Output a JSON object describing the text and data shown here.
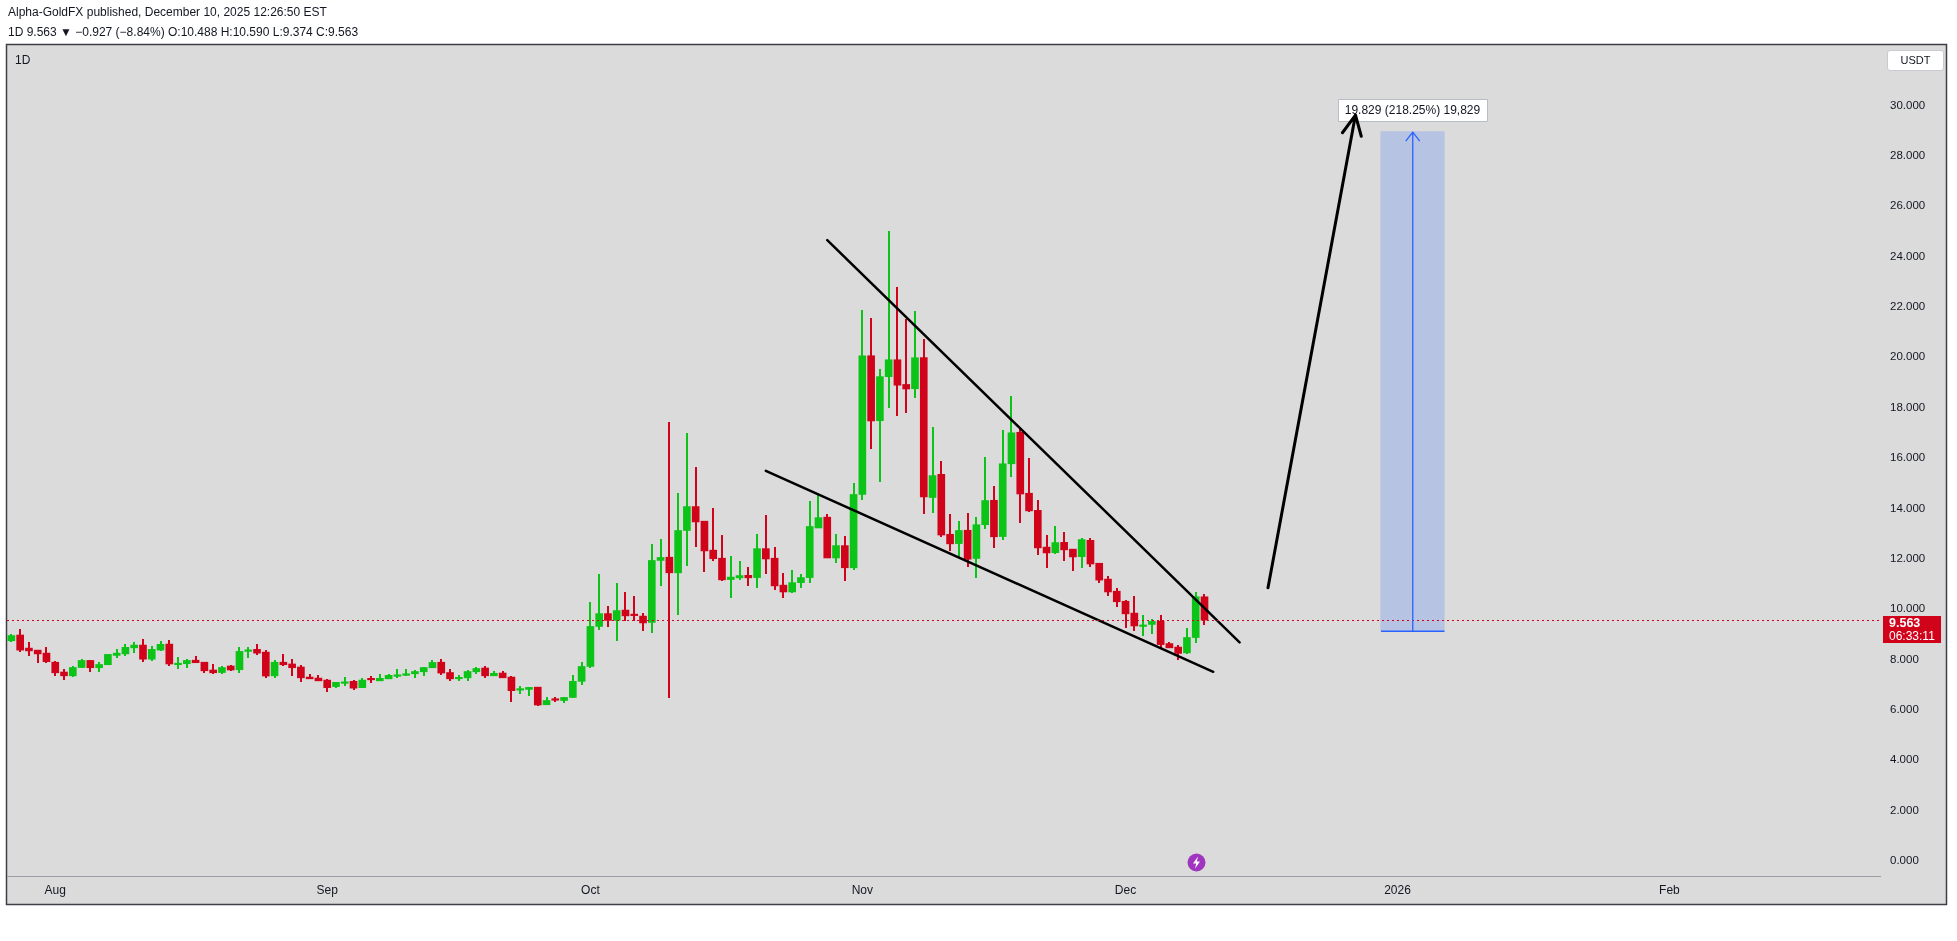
{
  "chart_data": {
    "type": "candlestick",
    "title": "1D",
    "subtitle": "1D 9.563 ▼ −0.927 (−8.84%) O:10.488 H:10.590 L:9.374 C:9.563",
    "ylabel": "USDT",
    "annotations": [
      "Alpha-GoldFX published, December 10, 2025 12:26:50 EST",
      "06:33:11",
      {
        "text": "19.829 (218.25%) 19,829",
        "x": "2026-01-02T17:00",
        "y": 28.96
      }
    ],
    "x": [
      "2025-07-27",
      "2025-07-28",
      "2025-07-29",
      "2025-07-30",
      "2025-07-31",
      "2025-08-01",
      "2025-08-02",
      "2025-08-03",
      "2025-08-04",
      "2025-08-05",
      "2025-08-06",
      "2025-08-07",
      "2025-08-08",
      "2025-08-09",
      "2025-08-10",
      "2025-08-11",
      "2025-08-12",
      "2025-08-13",
      "2025-08-14",
      "2025-08-15",
      "2025-08-16",
      "2025-08-17",
      "2025-08-18",
      "2025-08-19",
      "2025-08-20",
      "2025-08-21",
      "2025-08-22",
      "2025-08-23",
      "2025-08-24",
      "2025-08-25",
      "2025-08-26",
      "2025-08-27",
      "2025-08-28",
      "2025-08-29",
      "2025-08-30",
      "2025-08-31",
      "2025-09-01",
      "2025-09-02",
      "2025-09-03",
      "2025-09-04",
      "2025-09-05",
      "2025-09-06",
      "2025-09-07",
      "2025-09-08",
      "2025-09-09",
      "2025-09-10",
      "2025-09-11",
      "2025-09-12",
      "2025-09-13",
      "2025-09-14",
      "2025-09-15",
      "2025-09-16",
      "2025-09-17",
      "2025-09-18",
      "2025-09-19",
      "2025-09-20",
      "2025-09-21",
      "2025-09-22",
      "2025-09-23",
      "2025-09-24",
      "2025-09-25",
      "2025-09-26",
      "2025-09-27",
      "2025-09-28",
      "2025-09-29",
      "2025-09-30",
      "2025-10-01",
      "2025-10-02",
      "2025-10-03",
      "2025-10-04",
      "2025-10-05",
      "2025-10-06",
      "2025-10-07",
      "2025-10-08",
      "2025-10-09",
      "2025-10-10",
      "2025-10-11",
      "2025-10-12",
      "2025-10-13",
      "2025-10-14",
      "2025-10-15",
      "2025-10-16",
      "2025-10-17",
      "2025-10-18",
      "2025-10-19",
      "2025-10-20",
      "2025-10-21",
      "2025-10-22",
      "2025-10-23",
      "2025-10-24",
      "2025-10-25",
      "2025-10-26",
      "2025-10-27",
      "2025-10-28",
      "2025-10-29",
      "2025-10-30",
      "2025-10-31",
      "2025-11-01",
      "2025-11-02",
      "2025-11-03",
      "2025-11-04",
      "2025-11-05",
      "2025-11-06",
      "2025-11-07",
      "2025-11-08",
      "2025-11-09",
      "2025-11-10",
      "2025-11-11",
      "2025-11-12",
      "2025-11-13",
      "2025-11-14",
      "2025-11-15",
      "2025-11-16",
      "2025-11-17",
      "2025-11-18",
      "2025-11-19",
      "2025-11-20",
      "2025-11-21",
      "2025-11-22",
      "2025-11-23",
      "2025-11-24",
      "2025-11-25",
      "2025-11-26",
      "2025-11-27",
      "2025-11-28",
      "2025-11-29",
      "2025-11-30",
      "2025-12-01",
      "2025-12-02",
      "2025-12-03",
      "2025-12-04",
      "2025-12-05",
      "2025-12-06",
      "2025-12-07",
      "2025-12-08",
      "2025-12-09",
      "2025-12-10"
    ],
    "ohlc": [
      [
        8.74,
        9.0,
        8.72,
        8.95
      ],
      [
        8.97,
        9.2,
        8.33,
        8.37
      ],
      [
        8.45,
        8.69,
        8.17,
        8.34
      ],
      [
        8.37,
        8.37,
        7.87,
        8.22
      ],
      [
        8.25,
        8.49,
        7.87,
        7.91
      ],
      [
        7.89,
        7.93,
        7.38,
        7.47
      ],
      [
        7.5,
        7.6,
        7.19,
        7.35
      ],
      [
        7.35,
        7.72,
        7.31,
        7.68
      ],
      [
        7.68,
        8.01,
        7.68,
        7.96
      ],
      [
        7.96,
        7.96,
        7.51,
        7.67
      ],
      [
        7.67,
        7.89,
        7.51,
        7.8
      ],
      [
        7.79,
        8.2,
        7.79,
        8.2
      ],
      [
        8.16,
        8.4,
        8.07,
        8.25
      ],
      [
        8.22,
        8.61,
        8.15,
        8.48
      ],
      [
        8.46,
        8.69,
        8.26,
        8.57
      ],
      [
        8.57,
        8.81,
        7.93,
        8.01
      ],
      [
        8.01,
        8.53,
        7.95,
        8.4
      ],
      [
        8.37,
        8.7,
        8.34,
        8.6
      ],
      [
        8.61,
        8.77,
        7.75,
        7.82
      ],
      [
        7.85,
        8.09,
        7.63,
        7.85
      ],
      [
        7.83,
        8.01,
        7.67,
        7.96
      ],
      [
        7.97,
        8.13,
        7.87,
        7.87
      ],
      [
        7.89,
        7.89,
        7.47,
        7.55
      ],
      [
        7.58,
        7.81,
        7.43,
        7.47
      ],
      [
        7.48,
        7.72,
        7.44,
        7.68
      ],
      [
        7.74,
        7.77,
        7.58,
        7.58
      ],
      [
        7.59,
        8.49,
        7.47,
        8.32
      ],
      [
        8.38,
        8.49,
        8.07,
        8.38
      ],
      [
        8.4,
        8.61,
        8.19,
        8.25
      ],
      [
        8.29,
        8.37,
        7.27,
        7.34
      ],
      [
        7.35,
        7.96,
        7.27,
        7.89
      ],
      [
        7.89,
        8.21,
        7.74,
        7.79
      ],
      [
        7.82,
        8.01,
        7.38,
        7.67
      ],
      [
        7.7,
        7.74,
        7.14,
        7.27
      ],
      [
        7.3,
        7.42,
        7.23,
        7.23
      ],
      [
        7.26,
        7.38,
        7.15,
        7.15
      ],
      [
        7.18,
        7.22,
        6.74,
        6.88
      ],
      [
        6.92,
        7.09,
        6.88,
        7.09
      ],
      [
        7.11,
        7.29,
        6.96,
        7.11
      ],
      [
        7.13,
        7.18,
        6.82,
        6.86
      ],
      [
        6.88,
        7.25,
        6.88,
        7.18
      ],
      [
        7.2,
        7.31,
        7.07,
        7.19
      ],
      [
        7.15,
        7.41,
        7.15,
        7.25
      ],
      [
        7.23,
        7.41,
        7.23,
        7.37
      ],
      [
        7.39,
        7.62,
        7.3,
        7.39
      ],
      [
        7.43,
        7.62,
        7.38,
        7.43
      ],
      [
        7.43,
        7.58,
        7.3,
        7.52
      ],
      [
        7.51,
        7.68,
        7.35,
        7.68
      ],
      [
        7.67,
        7.97,
        7.67,
        7.88
      ],
      [
        7.89,
        8.0,
        7.42,
        7.46
      ],
      [
        7.48,
        7.6,
        7.15,
        7.23
      ],
      [
        7.29,
        7.38,
        7.15,
        7.29
      ],
      [
        7.27,
        7.58,
        7.15,
        7.52
      ],
      [
        7.51,
        7.68,
        7.46,
        7.64
      ],
      [
        7.66,
        7.72,
        7.3,
        7.35
      ],
      [
        7.35,
        7.52,
        7.35,
        7.45
      ],
      [
        7.46,
        7.52,
        7.27,
        7.27
      ],
      [
        7.3,
        7.33,
        6.32,
        6.76
      ],
      [
        6.84,
        6.94,
        6.64,
        6.84
      ],
      [
        6.81,
        6.89,
        6.56,
        6.89
      ],
      [
        6.9,
        6.9,
        6.19,
        6.19
      ],
      [
        6.2,
        6.49,
        6.2,
        6.37
      ],
      [
        6.39,
        6.47,
        6.32,
        6.38
      ],
      [
        6.37,
        6.49,
        6.28,
        6.49
      ],
      [
        6.49,
        7.38,
        6.49,
        7.13
      ],
      [
        7.13,
        7.88,
        7.02,
        7.72
      ],
      [
        7.72,
        10.27,
        7.67,
        9.31
      ],
      [
        9.31,
        11.39,
        9.18,
        9.82
      ],
      [
        9.82,
        10.12,
        9.3,
        9.55
      ],
      [
        9.55,
        11.03,
        8.74,
        9.94
      ],
      [
        9.96,
        10.67,
        9.53,
        9.73
      ],
      [
        9.75,
        10.51,
        9.53,
        9.74
      ],
      [
        9.72,
        9.82,
        9.14,
        9.45
      ],
      [
        9.47,
        12.57,
        9.06,
        11.93
      ],
      [
        11.93,
        12.77,
        10.95,
        12.05
      ],
      [
        12.06,
        17.41,
        6.48,
        11.44
      ],
      [
        11.44,
        14.6,
        9.77,
        13.12
      ],
      [
        13.12,
        16.98,
        11.74,
        14.07
      ],
      [
        14.07,
        15.63,
        12.47,
        13.46
      ],
      [
        13.49,
        13.49,
        11.48,
        12.31
      ],
      [
        12.34,
        14.0,
        11.91,
        12.0
      ],
      [
        12.02,
        12.93,
        11.12,
        11.16
      ],
      [
        11.17,
        12.1,
        10.45,
        11.27
      ],
      [
        11.24,
        11.9,
        11.17,
        11.33
      ],
      [
        11.34,
        11.66,
        10.92,
        11.24
      ],
      [
        11.25,
        12.97,
        10.84,
        12.4
      ],
      [
        12.4,
        13.72,
        11.4,
        11.99
      ],
      [
        12.02,
        12.46,
        10.76,
        10.92
      ],
      [
        10.95,
        11.4,
        10.45,
        10.68
      ],
      [
        10.68,
        11.52,
        10.64,
        11.05
      ],
      [
        11.05,
        11.38,
        10.84,
        11.25
      ],
      [
        11.25,
        14.29,
        11.04,
        13.28
      ],
      [
        13.22,
        14.52,
        13.22,
        13.63
      ],
      [
        13.65,
        13.76,
        12.03,
        12.03
      ],
      [
        12.03,
        12.97,
        11.83,
        12.52
      ],
      [
        12.52,
        12.89,
        11.12,
        11.64
      ],
      [
        11.64,
        14.99,
        11.56,
        14.55
      ],
      [
        14.55,
        21.86,
        14.35,
        20.06
      ],
      [
        20.06,
        21.54,
        16.36,
        17.47
      ],
      [
        17.48,
        19.5,
        15.05,
        19.23
      ],
      [
        19.23,
        24.99,
        18.02,
        19.9
      ],
      [
        19.9,
        22.77,
        17.7,
        18.89
      ],
      [
        18.92,
        21.5,
        17.82,
        18.74
      ],
      [
        18.75,
        21.82,
        18.39,
        19.98
      ],
      [
        19.99,
        20.71,
        13.79,
        14.45
      ],
      [
        14.43,
        17.22,
        13.82,
        15.3
      ],
      [
        15.35,
        15.88,
        12.89,
        12.94
      ],
      [
        12.97,
        13.74,
        12.34,
        12.59
      ],
      [
        12.6,
        13.49,
        12.03,
        13.12
      ],
      [
        13.13,
        13.78,
        11.71,
        11.98
      ],
      [
        12.01,
        13.62,
        11.24,
        13.35
      ],
      [
        13.35,
        16.0,
        13.2,
        14.31
      ],
      [
        14.32,
        14.88,
        12.43,
        12.87
      ],
      [
        12.88,
        17.1,
        12.76,
        15.77
      ],
      [
        15.77,
        18.44,
        15.26,
        17.0
      ],
      [
        17.02,
        17.16,
        13.43,
        14.57
      ],
      [
        14.6,
        15.99,
        13.86,
        13.9
      ],
      [
        13.92,
        14.33,
        12.16,
        12.43
      ],
      [
        12.46,
        12.93,
        11.64,
        12.23
      ],
      [
        12.24,
        13.29,
        12.2,
        12.64
      ],
      [
        12.65,
        13.05,
        11.94,
        12.35
      ],
      [
        12.38,
        12.38,
        11.52,
        12.07
      ],
      [
        12.08,
        12.81,
        11.64,
        12.76
      ],
      [
        12.73,
        12.79,
        11.71,
        11.79
      ],
      [
        11.82,
        11.82,
        11.04,
        11.15
      ],
      [
        11.19,
        11.3,
        10.55,
        10.68
      ],
      [
        10.71,
        10.82,
        10.09,
        10.29
      ],
      [
        10.31,
        10.35,
        9.27,
        9.81
      ],
      [
        9.84,
        10.51,
        9.16,
        9.33
      ],
      [
        9.37,
        9.76,
        8.96,
        9.37
      ],
      [
        9.39,
        9.6,
        9.04,
        9.51
      ],
      [
        9.52,
        9.76,
        8.42,
        8.59
      ],
      [
        8.63,
        8.69,
        8.46,
        8.46
      ],
      [
        8.49,
        8.57,
        8.01,
        8.24
      ],
      [
        8.26,
        9.24,
        8.24,
        8.87
      ],
      [
        8.87,
        10.67,
        8.69,
        10.49
      ],
      [
        10.488,
        10.59,
        9.374,
        9.563
      ]
    ],
    "colors": [
      "#0cc418",
      "#d0031b",
      "#d0031b",
      "#d0031b",
      "#d0031b",
      "#d0031b",
      "#d0031b",
      "#0cc418",
      "#0cc418",
      "#d0031b",
      "#0cc418",
      "#0cc418",
      "#0cc418",
      "#0cc418",
      "#0cc418",
      "#d0031b",
      "#0cc418",
      "#0cc418",
      "#d0031b",
      "#0cc418",
      "#0cc418",
      "#d0031b",
      "#d0031b",
      "#d0031b",
      "#0cc418",
      "#d0031b",
      "#0cc418",
      "#0cc418",
      "#d0031b",
      "#d0031b",
      "#0cc418",
      "#d0031b",
      "#d0031b",
      "#d0031b",
      "#d0031b",
      "#d0031b",
      "#d0031b",
      "#0cc418",
      "#0cc418",
      "#d0031b",
      "#0cc418",
      "#d0031b",
      "#0cc418",
      "#0cc418",
      "#0cc418",
      "#0cc418",
      "#0cc418",
      "#0cc418",
      "#0cc418",
      "#d0031b",
      "#d0031b",
      "#0cc418",
      "#0cc418",
      "#0cc418",
      "#d0031b",
      "#0cc418",
      "#d0031b",
      "#d0031b",
      "#0cc418",
      "#0cc418",
      "#d0031b",
      "#0cc418",
      "#d0031b",
      "#0cc418",
      "#0cc418",
      "#0cc418",
      "#0cc418",
      "#0cc418",
      "#d0031b",
      "#0cc418",
      "#d0031b",
      "#d0031b",
      "#d0031b",
      "#0cc418",
      "#0cc418",
      "#d0031b",
      "#0cc418",
      "#0cc418",
      "#d0031b",
      "#d0031b",
      "#d0031b",
      "#d0031b",
      "#0cc418",
      "#0cc418",
      "#d0031b",
      "#0cc418",
      "#d0031b",
      "#d0031b",
      "#d0031b",
      "#0cc418",
      "#0cc418",
      "#0cc418",
      "#0cc418",
      "#d0031b",
      "#0cc418",
      "#d0031b",
      "#0cc418",
      "#0cc418",
      "#d0031b",
      "#0cc418",
      "#0cc418",
      "#d0031b",
      "#d0031b",
      "#0cc418",
      "#d0031b",
      "#0cc418",
      "#d0031b",
      "#d0031b",
      "#0cc418",
      "#d0031b",
      "#0cc418",
      "#0cc418",
      "#d0031b",
      "#0cc418",
      "#0cc418",
      "#d0031b",
      "#d0031b",
      "#d0031b",
      "#d0031b",
      "#0cc418",
      "#d0031b",
      "#d0031b",
      "#0cc418",
      "#d0031b",
      "#d0031b",
      "#d0031b",
      "#d0031b",
      "#d0031b",
      "#d0031b",
      "#0cc418",
      "#0cc418",
      "#d0031b",
      "#d0031b",
      "#d0031b",
      "#0cc418",
      "#0cc418",
      "#d0031b"
    ],
    "series": [
      {
        "type": "line",
        "x": [
          "2025-10-28",
          "2025-12-14"
        ],
        "values": [
          24.65,
          8.68
        ],
        "color": "#000000"
      },
      {
        "type": "line",
        "x": [
          "2025-10-21",
          "2025-12-11"
        ],
        "values": [
          15.49,
          7.51
        ],
        "color": "#000000"
      },
      {
        "type": "bar",
        "x": [
          "2026-01-02T17:00"
        ],
        "base": [
          9.131
        ],
        "values": [
          19.829
        ],
        "color": "#b7c3e3"
      }
    ],
    "xlim": [
      "2025-07-26T12:00",
      "2026-02-25"
    ],
    "xticks": [
      {
        "value": "2025-08-01",
        "label": "Aug"
      },
      {
        "value": "2025-09-01",
        "label": "Sep"
      },
      {
        "value": "2025-10-01",
        "label": "Oct"
      },
      {
        "value": "2025-11-01",
        "label": "Nov"
      },
      {
        "value": "2025-12-01",
        "label": "Dec"
      },
      {
        "value": "2026-01-01",
        "label": "2026"
      },
      {
        "value": "2026-02-01",
        "label": "Feb"
      }
    ],
    "ylim": [
      -0.6,
      32.4
    ],
    "yticks": [
      {
        "value": 0,
        "label": "0.000"
      },
      {
        "value": 2,
        "label": "2.000"
      },
      {
        "value": 4,
        "label": "4.000"
      },
      {
        "value": 6,
        "label": "6.000"
      },
      {
        "value": 8,
        "label": "8.000"
      },
      {
        "value": 10,
        "label": "10.000"
      },
      {
        "value": 12,
        "label": "12.000"
      },
      {
        "value": 14,
        "label": "14.000"
      },
      {
        "value": 16,
        "label": "16.000"
      },
      {
        "value": 18,
        "label": "18.000"
      },
      {
        "value": 20,
        "label": "20.000"
      },
      {
        "value": 22,
        "label": "22.000"
      },
      {
        "value": 24,
        "label": "24.000"
      },
      {
        "value": 26,
        "label": "26.000"
      },
      {
        "value": 28,
        "label": "28.000"
      },
      {
        "value": 30,
        "label": "30.000"
      }
    ],
    "ref_lines": [
      {
        "axis": "y",
        "value": 9.563,
        "label": "9.563",
        "color": "#d0031b",
        "line_style": "dotted"
      }
    ],
    "marker": "none"
  }
}
